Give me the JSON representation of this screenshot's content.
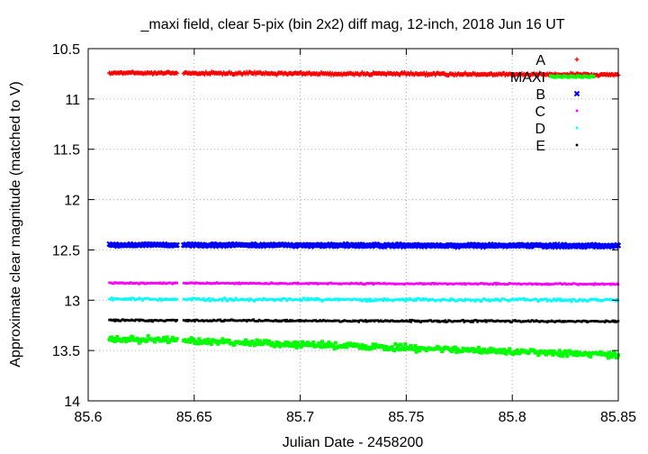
{
  "chart_data": {
    "type": "scatter",
    "title": "_maxi field, clear 5-pix (bin 2x2) diff mag, 12-inch, 2018 Jun 16 UT",
    "xlabel": "Julian Date - 2458200",
    "ylabel": "Approximate clear magnitude (matched to V)",
    "xlim": [
      85.6,
      85.85
    ],
    "ylim": [
      14,
      10.5
    ],
    "y_axis_inverted": true,
    "x_ticks": [
      "85.6",
      "85.65",
      "85.7",
      "85.75",
      "85.8",
      "85.85"
    ],
    "y_ticks": [
      "10.5",
      "11",
      "11.5",
      "12",
      "12.5",
      "13",
      "13.5",
      "14"
    ],
    "grid": true,
    "legend_position": "top-right",
    "x_range_observed": [
      85.61,
      85.85
    ],
    "gap": [
      85.642,
      85.645
    ],
    "series": [
      {
        "name": "A",
        "color": "#ff0000",
        "marker": "plus",
        "start_mag": 10.74,
        "end_mag": 10.76,
        "scatter": 0.01
      },
      {
        "name": "MAXI",
        "color": "#00ff00",
        "marker": "square",
        "start_mag": 13.38,
        "end_mag": 13.54,
        "scatter": 0.025
      },
      {
        "name": "B",
        "color": "#0000ff",
        "marker": "cross",
        "start_mag": 12.45,
        "end_mag": 12.46,
        "scatter": 0.01
      },
      {
        "name": "C",
        "color": "#ff00ff",
        "marker": "dot",
        "start_mag": 12.83,
        "end_mag": 12.84,
        "scatter": 0.006
      },
      {
        "name": "D",
        "color": "#00ffff",
        "marker": "dot",
        "start_mag": 12.99,
        "end_mag": 13.0,
        "scatter": 0.012
      },
      {
        "name": "E",
        "color": "#000000",
        "marker": "dot",
        "start_mag": 13.2,
        "end_mag": 13.21,
        "scatter": 0.008
      }
    ]
  }
}
